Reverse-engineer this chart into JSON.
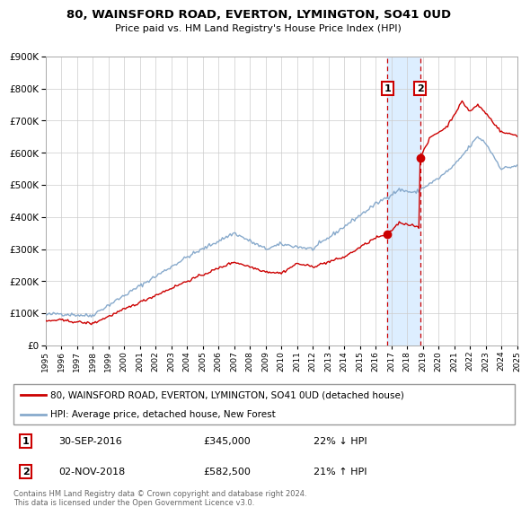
{
  "title": "80, WAINSFORD ROAD, EVERTON, LYMINGTON, SO41 0UD",
  "subtitle": "Price paid vs. HM Land Registry's House Price Index (HPI)",
  "legend_line1": "80, WAINSFORD ROAD, EVERTON, LYMINGTON, SO41 0UD (detached house)",
  "legend_line2": "HPI: Average price, detached house, New Forest",
  "sale1_date": "30-SEP-2016",
  "sale1_price": 345000,
  "sale1_hpi": "22% ↓ HPI",
  "sale2_date": "02-NOV-2018",
  "sale2_price": 582500,
  "sale2_hpi": "21% ↑ HPI",
  "footnote": "Contains HM Land Registry data © Crown copyright and database right 2024.\nThis data is licensed under the Open Government Licence v3.0.",
  "red_color": "#cc0000",
  "blue_color": "#88aacc",
  "highlight_color": "#ddeeff",
  "grid_color": "#cccccc",
  "ylim": [
    0,
    900000
  ],
  "yticks": [
    0,
    100000,
    200000,
    300000,
    400000,
    500000,
    600000,
    700000,
    800000,
    900000
  ],
  "sale1_year": 2016.75,
  "sale2_year": 2018.83
}
